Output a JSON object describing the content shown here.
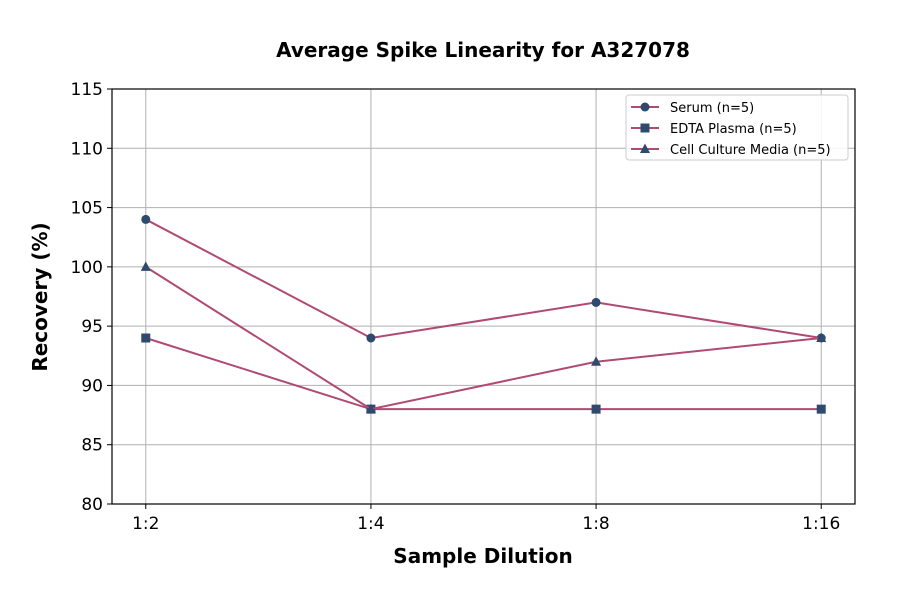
{
  "chart_data": {
    "type": "line",
    "title": "Average Spike Linearity for A327078",
    "xlabel": "Sample Dilution",
    "ylabel": "Recovery (%)",
    "categories": [
      "1:2",
      "1:4",
      "1:8",
      "1:16"
    ],
    "ylim": [
      80,
      115
    ],
    "yticks": [
      80,
      85,
      90,
      95,
      100,
      105,
      110,
      115
    ],
    "grid": true,
    "legend_position": "top-right",
    "line_color": "#b04a72",
    "marker_color": "#2e4a6e",
    "series": [
      {
        "name": "Serum (n=5)",
        "marker": "circle",
        "values": [
          104,
          94,
          97,
          94
        ]
      },
      {
        "name": "EDTA Plasma (n=5)",
        "marker": "square",
        "values": [
          94,
          88,
          88,
          88
        ]
      },
      {
        "name": "Cell Culture Media (n=5)",
        "marker": "triangle",
        "values": [
          100,
          88,
          92,
          94
        ]
      }
    ]
  }
}
